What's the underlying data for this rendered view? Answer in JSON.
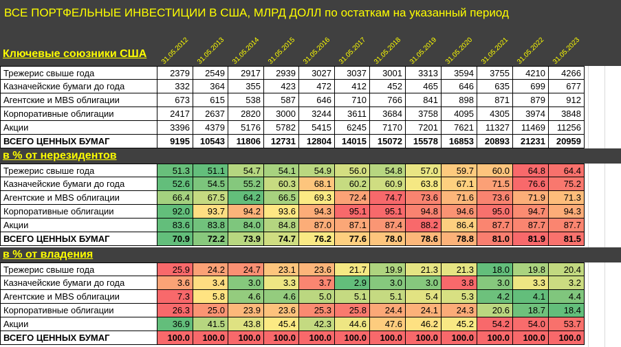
{
  "title": "ВСЕ ПОРТФЕЛЬНЫЕ ИНВЕСТИЦИИ В США, МЛРД ДОЛЛ по остаткам на указанный период",
  "dates": [
    "31.05.2012",
    "31.05.2013",
    "31.05.2014",
    "31.05.2015",
    "31.05.2016",
    "31.05.2017",
    "31.05.2018",
    "31.05.2019",
    "31.05.2020",
    "31.05.2021",
    "31.05.2022",
    "31.05.2023"
  ],
  "colors": {
    "header_bg": "#404040",
    "header_text": "#ffff00",
    "scale_low": "#63be7b",
    "scale_mid": "#ffeb84",
    "scale_high": "#f8696b"
  },
  "sections": [
    {
      "label": "Ключевые союзники США",
      "colored": false,
      "rows": [
        {
          "label": "Трежерис свыше года",
          "bold": false,
          "values": [
            "2379",
            "2549",
            "2917",
            "2939",
            "3027",
            "3037",
            "3001",
            "3313",
            "3594",
            "3755",
            "4210",
            "4266"
          ]
        },
        {
          "label": "Казначейские бумаги до года",
          "bold": false,
          "values": [
            "332",
            "364",
            "355",
            "423",
            "472",
            "412",
            "452",
            "465",
            "646",
            "635",
            "699",
            "677"
          ]
        },
        {
          "label": "Агентские и MBS облигации",
          "bold": false,
          "values": [
            "673",
            "615",
            "538",
            "587",
            "646",
            "710",
            "766",
            "841",
            "898",
            "871",
            "879",
            "912"
          ]
        },
        {
          "label": "Корпоративные облигации",
          "bold": false,
          "values": [
            "2417",
            "2637",
            "2820",
            "3000",
            "3244",
            "3611",
            "3684",
            "3758",
            "4095",
            "4305",
            "3974",
            "3848"
          ]
        },
        {
          "label": "Акции",
          "bold": false,
          "values": [
            "3396",
            "4379",
            "5176",
            "5782",
            "5415",
            "6245",
            "7170",
            "7201",
            "7621",
            "11327",
            "11469",
            "11256"
          ]
        },
        {
          "label": "ВСЕГО ЦЕННЫХ БУМАГ",
          "bold": true,
          "values": [
            "9195",
            "10543",
            "11806",
            "12731",
            "12804",
            "14015",
            "15072",
            "15578",
            "16853",
            "20893",
            "21231",
            "20959"
          ]
        }
      ]
    },
    {
      "label": "в % от нерезидентов",
      "colored": true,
      "rows": [
        {
          "label": "Трежерис свыше года",
          "bold": false,
          "values": [
            "51.3",
            "51.1",
            "54.7",
            "54.1",
            "54.9",
            "56.0",
            "54.8",
            "57.0",
            "59.7",
            "60.0",
            "64.8",
            "64.4"
          ]
        },
        {
          "label": "Казначейские бумаги до года",
          "bold": false,
          "values": [
            "52.6",
            "54.5",
            "55.2",
            "60.3",
            "68.1",
            "60.2",
            "60.9",
            "63.8",
            "67.1",
            "71.5",
            "76.6",
            "75.2"
          ]
        },
        {
          "label": "Агентские и MBS облигации",
          "bold": false,
          "values": [
            "66.4",
            "67.5",
            "64.2",
            "66.5",
            "69.3",
            "72.4",
            "74.7",
            "73.6",
            "71.6",
            "73.6",
            "71.9",
            "71.3"
          ]
        },
        {
          "label": "Корпоративные облигации",
          "bold": false,
          "values": [
            "92.0",
            "93.7",
            "94.2",
            "93.6",
            "94.3",
            "95.1",
            "95.1",
            "94.8",
            "94.6",
            "95.0",
            "94.7",
            "94.3"
          ]
        },
        {
          "label": "Акции",
          "bold": false,
          "values": [
            "83.6",
            "83.8",
            "84.0",
            "84.8",
            "87.0",
            "87.1",
            "87.4",
            "88.2",
            "86.4",
            "87.7",
            "87.7",
            "87.7"
          ]
        },
        {
          "label": "ВСЕГО ЦЕННЫХ БУМАГ",
          "bold": true,
          "values": [
            "70.9",
            "72.2",
            "73.9",
            "74.7",
            "76.2",
            "77.6",
            "78.0",
            "78.6",
            "78.8",
            "81.0",
            "81.9",
            "81.5"
          ]
        }
      ]
    },
    {
      "label": "в % от владения",
      "colored": true,
      "rows": [
        {
          "label": "Трежерис свыше года",
          "bold": false,
          "values": [
            "25.9",
            "24.2",
            "24.7",
            "23.1",
            "23.6",
            "21.7",
            "19.9",
            "21.3",
            "21.3",
            "18.0",
            "19.8",
            "20.4"
          ]
        },
        {
          "label": "Казначейские бумаги до года",
          "bold": false,
          "values": [
            "3.6",
            "3.4",
            "3.0",
            "3.3",
            "3.7",
            "2.9",
            "3.0",
            "3.0",
            "3.8",
            "3.0",
            "3.3",
            "3.2"
          ]
        },
        {
          "label": "Агентские и MBS облигации",
          "bold": false,
          "values": [
            "7.3",
            "5.8",
            "4.6",
            "4.6",
            "5.0",
            "5.1",
            "5.1",
            "5.4",
            "5.3",
            "4.2",
            "4.1",
            "4.4"
          ]
        },
        {
          "label": "Корпоративные облигации",
          "bold": false,
          "values": [
            "26.3",
            "25.0",
            "23.9",
            "23.6",
            "25.3",
            "25.8",
            "24.4",
            "24.1",
            "24.3",
            "20.6",
            "18.7",
            "18.4"
          ]
        },
        {
          "label": "Акции",
          "bold": false,
          "values": [
            "36.9",
            "41.5",
            "43.8",
            "45.4",
            "42.3",
            "44.6",
            "47.6",
            "46.2",
            "45.2",
            "54.2",
            "54.0",
            "53.7"
          ]
        },
        {
          "label": "ВСЕГО ЦЕННЫХ БУМАГ",
          "bold": true,
          "values": [
            "100.0",
            "100.0",
            "100.0",
            "100.0",
            "100.0",
            "100.0",
            "100.0",
            "100.0",
            "100.0",
            "100.0",
            "100.0",
            "100.0"
          ]
        }
      ]
    }
  ]
}
